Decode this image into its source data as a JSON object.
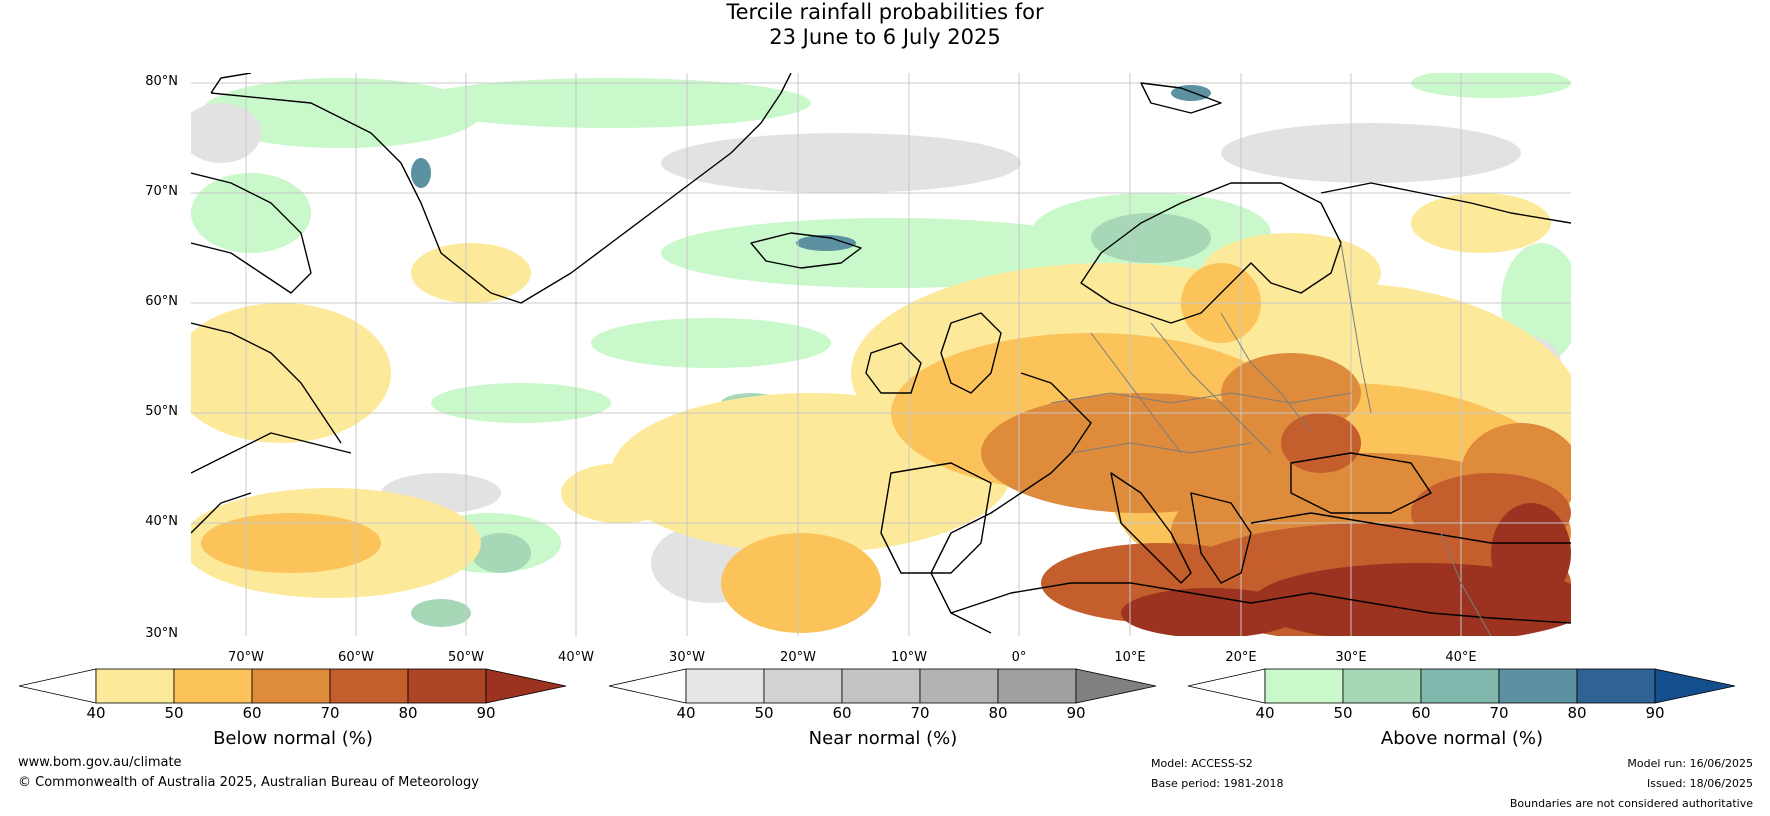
{
  "title_line1": "Tercile rainfall probabilities for",
  "title_line2": "23 June to 6 July 2025",
  "lat_labels": [
    "80°N",
    "70°N",
    "60°N",
    "50°N",
    "40°N",
    "30°N"
  ],
  "lon_labels": [
    "70°W",
    "60°W",
    "50°W",
    "40°W",
    "30°W",
    "20°W",
    "10°W",
    "0°",
    "10°E",
    "20°E",
    "30°E",
    "40°E"
  ],
  "colorbars": [
    {
      "label": "Below normal (%)",
      "ticks": [
        "40",
        "50",
        "60",
        "70",
        "80",
        "90"
      ],
      "colors": [
        "#ffffff",
        "#fde99a",
        "#fbc35a",
        "#de8b3c",
        "#c45e2c",
        "#ac4425",
        "#9c3220"
      ]
    },
    {
      "label": "Near normal (%)",
      "ticks": [
        "40",
        "50",
        "60",
        "70",
        "80",
        "90"
      ],
      "colors": [
        "#ffffff",
        "#e6e6e6",
        "#d2d2d2",
        "#c3c3c3",
        "#b4b4b4",
        "#a0a0a0",
        "#808080"
      ]
    },
    {
      "label": "Above normal (%)",
      "ticks": [
        "40",
        "50",
        "60",
        "70",
        "80",
        "90"
      ],
      "colors": [
        "#ffffff",
        "#c9f8cb",
        "#a6d8b8",
        "#82b7ae",
        "#5b91a0",
        "#2f6396",
        "#154e8c"
      ]
    }
  ],
  "footer": {
    "website": "www.bom.gov.au/climate",
    "copyright": "© Commonwealth of Australia 2025, Australian Bureau of Meteorology",
    "model": "Model: ACCESS-S2",
    "base_period": "Base period: 1981-2018",
    "model_run": "Model run: 16/06/2025",
    "issued": "Issued: 18/06/2025",
    "disclaimer": "Boundaries are not considered authoritative"
  }
}
